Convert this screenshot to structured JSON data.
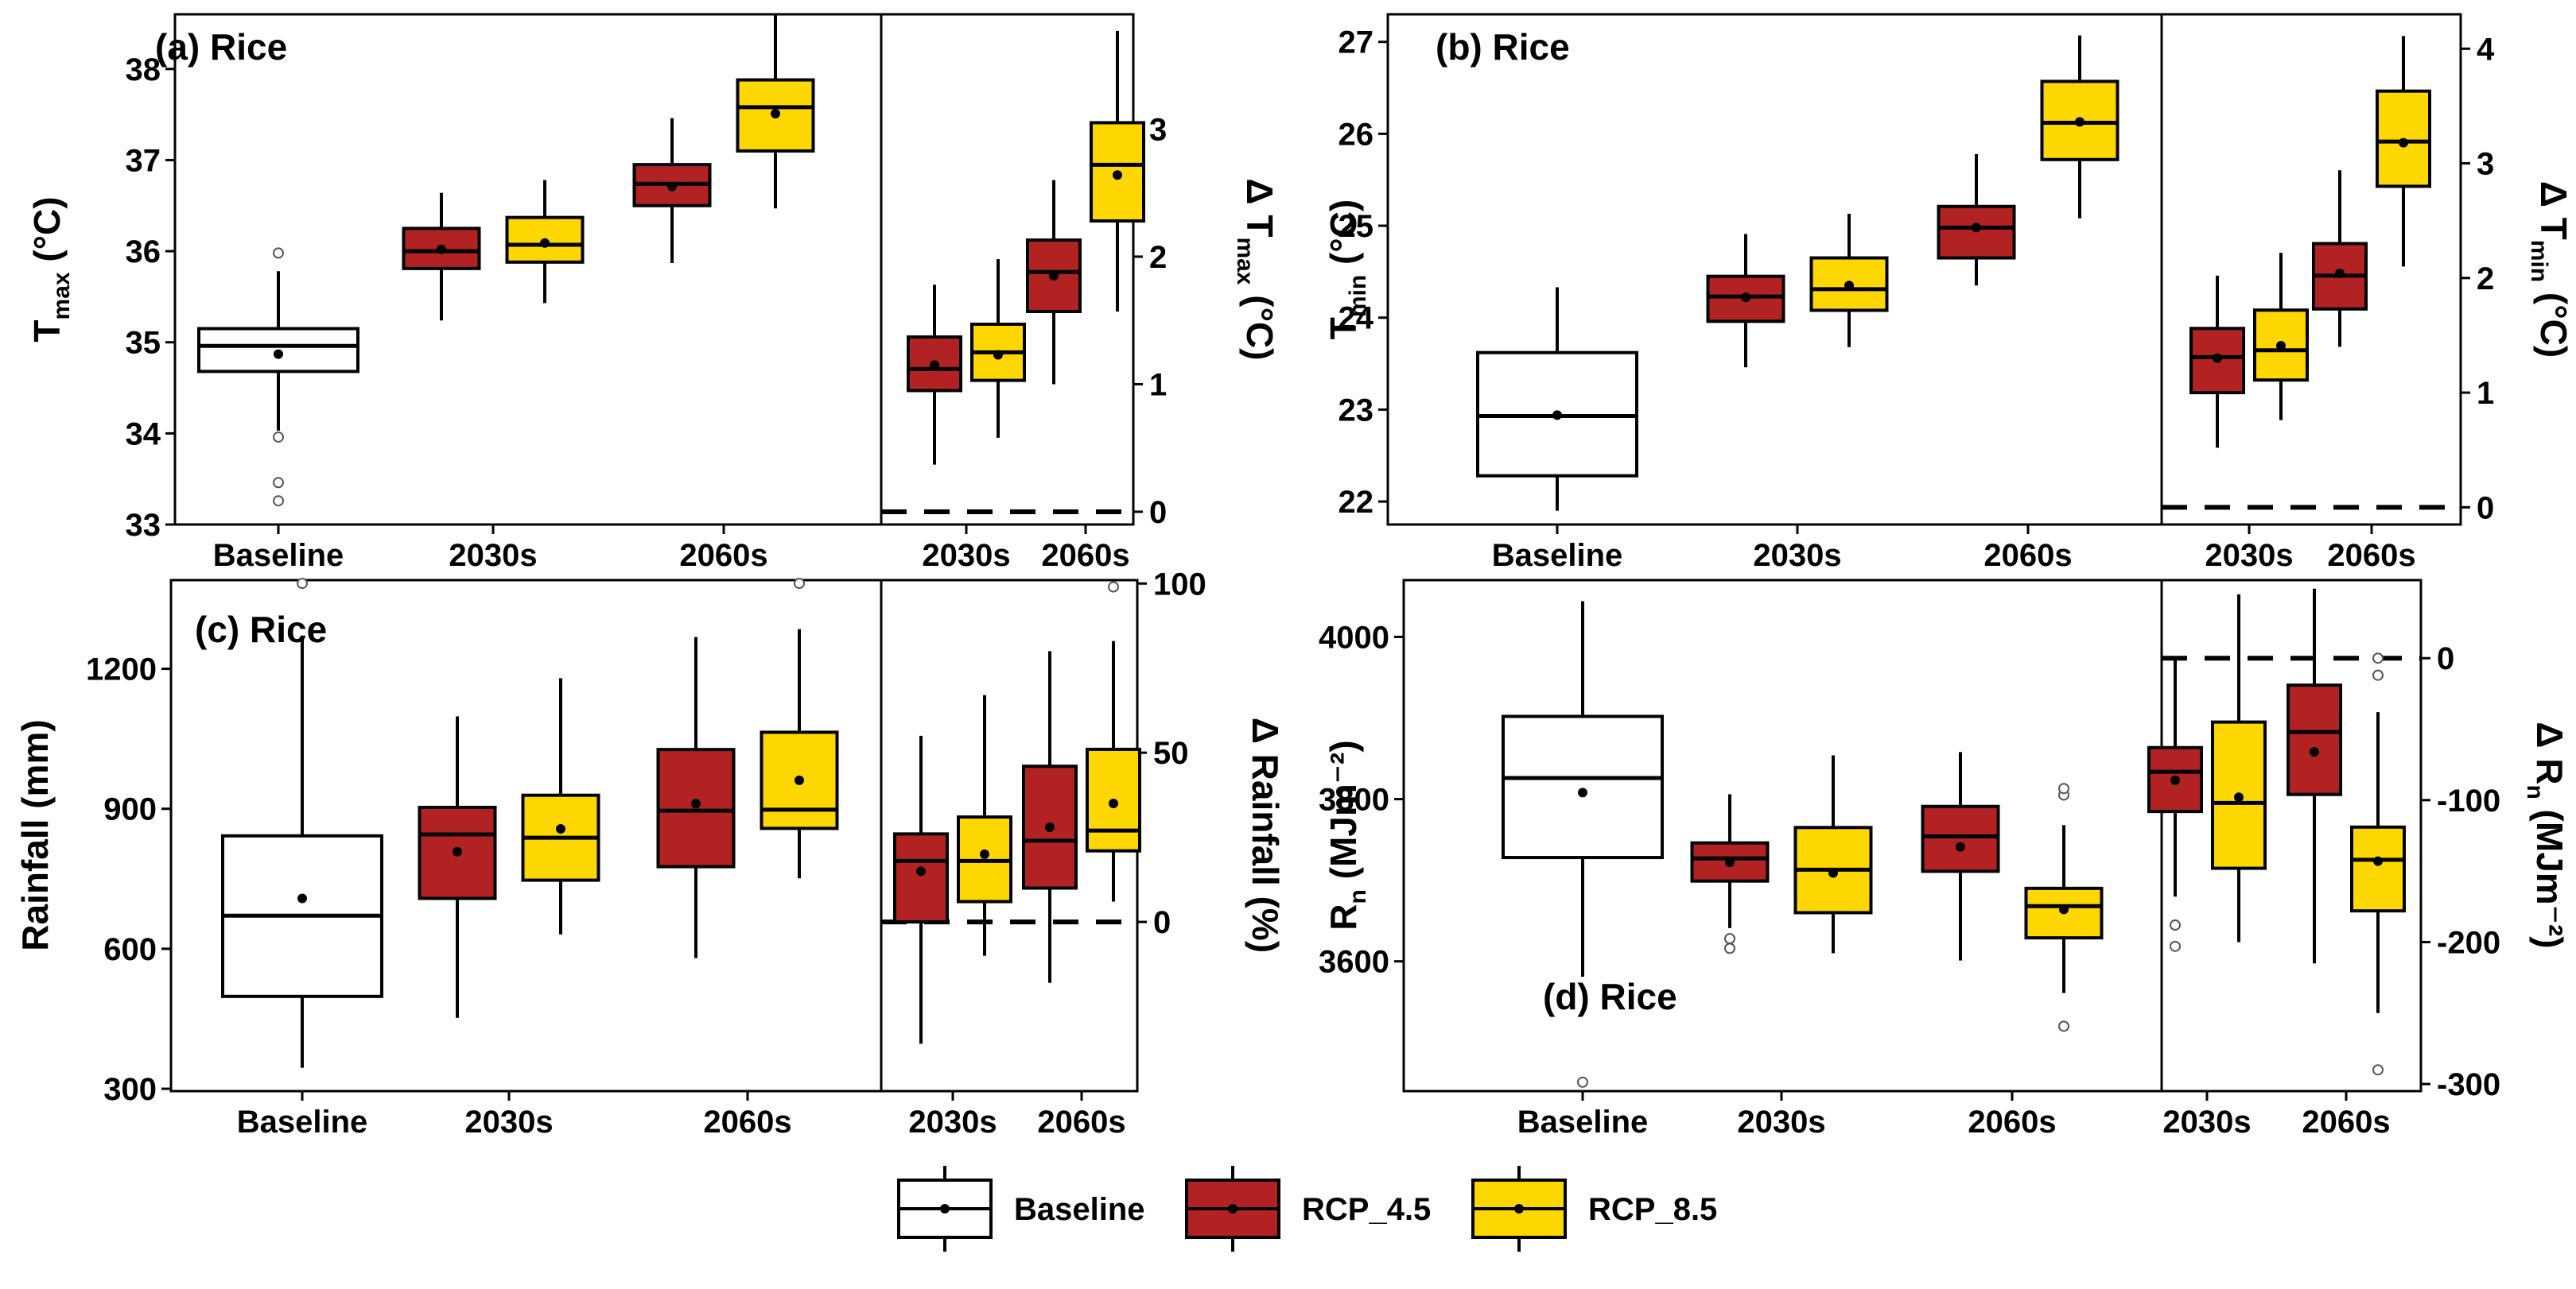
{
  "colors": {
    "baseline": "#ffffff",
    "rcp45": "#b22222",
    "rcp85": "#ffd700",
    "stroke": "#000000"
  },
  "legend": [
    {
      "key": "baseline",
      "label": "Baseline"
    },
    {
      "key": "rcp45",
      "label": "RCP_4.5"
    },
    {
      "key": "rcp85",
      "label": "RCP_8.5"
    }
  ],
  "chart_data": [
    {
      "type": "box",
      "panel": "a",
      "title": "(a) Rice",
      "ylabel": {
        "main": "T",
        "sub": "max",
        "unit": " (°C)"
      },
      "ylim": [
        33,
        38.6
      ],
      "yticks": [
        33,
        34,
        35,
        36,
        37,
        38
      ],
      "categories": [
        "Baseline",
        "2030s",
        "2060s"
      ],
      "boxes": [
        {
          "cat": 0,
          "series": "baseline",
          "whislo": 34.03,
          "q1": 34.68,
          "med": 34.96,
          "q3": 35.15,
          "whishi": 35.78,
          "mean": 34.87,
          "fliers": [
            35.98,
            33.96,
            33.46,
            33.26
          ]
        },
        {
          "cat": 1,
          "series": "rcp45",
          "whislo": 35.24,
          "q1": 35.81,
          "med": 36.0,
          "q3": 36.25,
          "whishi": 36.64,
          "mean": 36.02,
          "fliers": []
        },
        {
          "cat": 1,
          "series": "rcp85",
          "whislo": 35.43,
          "q1": 35.88,
          "med": 36.07,
          "q3": 36.37,
          "whishi": 36.78,
          "mean": 36.09,
          "fliers": []
        },
        {
          "cat": 2,
          "series": "rcp45",
          "whislo": 35.87,
          "q1": 36.5,
          "med": 36.74,
          "q3": 36.95,
          "whishi": 37.46,
          "mean": 36.71,
          "fliers": []
        },
        {
          "cat": 2,
          "series": "rcp85",
          "whislo": 36.47,
          "q1": 37.1,
          "med": 37.58,
          "q3": 37.88,
          "whishi": 38.6,
          "mean": 37.51,
          "fliers": []
        }
      ],
      "delta": {
        "ylabel": {
          "main": "Δ T",
          "sub": "max",
          "unit": " (°C)"
        },
        "ylim": [
          -0.1,
          3.9
        ],
        "yticks": [
          0,
          1,
          2,
          3
        ],
        "categories": [
          "2030s",
          "2060s"
        ],
        "hline": 0,
        "boxes": [
          {
            "cat": 0,
            "series": "rcp45",
            "whislo": 0.37,
            "q1": 0.95,
            "med": 1.12,
            "q3": 1.37,
            "whishi": 1.78,
            "mean": 1.15,
            "fliers": []
          },
          {
            "cat": 0,
            "series": "rcp85",
            "whislo": 0.58,
            "q1": 1.03,
            "med": 1.25,
            "q3": 1.47,
            "whishi": 1.98,
            "mean": 1.23,
            "fliers": []
          },
          {
            "cat": 1,
            "series": "rcp45",
            "whislo": 1.0,
            "q1": 1.57,
            "med": 1.88,
            "q3": 2.13,
            "whishi": 2.6,
            "mean": 1.85,
            "fliers": []
          },
          {
            "cat": 1,
            "series": "rcp85",
            "whislo": 1.57,
            "q1": 2.28,
            "med": 2.72,
            "q3": 3.05,
            "whishi": 3.77,
            "mean": 2.64,
            "fliers": []
          }
        ]
      }
    },
    {
      "type": "box",
      "panel": "b",
      "title": "(b) Rice",
      "ylabel": {
        "main": "T",
        "sub": "min",
        "unit": " (°C)"
      },
      "ylim": [
        21.75,
        27.3
      ],
      "yticks": [
        22,
        23,
        24,
        25,
        26,
        27
      ],
      "categories": [
        "Baseline",
        "2030s",
        "2060s"
      ],
      "boxes": [
        {
          "cat": 0,
          "series": "baseline",
          "whislo": 21.9,
          "q1": 22.28,
          "med": 22.93,
          "q3": 23.62,
          "whishi": 24.33,
          "mean": 22.94,
          "fliers": []
        },
        {
          "cat": 1,
          "series": "rcp45",
          "whislo": 23.46,
          "q1": 23.96,
          "med": 24.23,
          "q3": 24.45,
          "whishi": 24.91,
          "mean": 24.22,
          "fliers": []
        },
        {
          "cat": 1,
          "series": "rcp85",
          "whislo": 23.68,
          "q1": 24.08,
          "med": 24.31,
          "q3": 24.65,
          "whishi": 25.13,
          "mean": 24.35,
          "fliers": []
        },
        {
          "cat": 2,
          "series": "rcp45",
          "whislo": 24.35,
          "q1": 24.65,
          "med": 24.98,
          "q3": 25.21,
          "whishi": 25.78,
          "mean": 24.98,
          "fliers": []
        },
        {
          "cat": 2,
          "series": "rcp85",
          "whislo": 25.08,
          "q1": 25.72,
          "med": 26.12,
          "q3": 26.57,
          "whishi": 27.07,
          "mean": 26.13,
          "fliers": []
        }
      ],
      "delta": {
        "ylabel": {
          "main": "Δ T",
          "sub": "min",
          "unit": " (°C)"
        },
        "ylim": [
          -0.15,
          4.3
        ],
        "yticks": [
          0,
          1,
          2,
          3,
          4
        ],
        "categories": [
          "2030s",
          "2060s"
        ],
        "hline": 0,
        "boxes": [
          {
            "cat": 0,
            "series": "rcp45",
            "whislo": 0.52,
            "q1": 1.0,
            "med": 1.31,
            "q3": 1.56,
            "whishi": 2.02,
            "mean": 1.3,
            "fliers": []
          },
          {
            "cat": 0,
            "series": "rcp85",
            "whislo": 0.76,
            "q1": 1.11,
            "med": 1.37,
            "q3": 1.72,
            "whishi": 2.22,
            "mean": 1.41,
            "fliers": []
          },
          {
            "cat": 1,
            "series": "rcp45",
            "whislo": 1.4,
            "q1": 1.73,
            "med": 2.02,
            "q3": 2.3,
            "whishi": 2.94,
            "mean": 2.04,
            "fliers": []
          },
          {
            "cat": 1,
            "series": "rcp85",
            "whislo": 2.1,
            "q1": 2.8,
            "med": 3.19,
            "q3": 3.63,
            "whishi": 4.11,
            "mean": 3.18,
            "fliers": []
          }
        ]
      }
    },
    {
      "type": "box",
      "panel": "c",
      "title": "(c) Rice",
      "ylabel": {
        "main": "Rainfall (mm)",
        "sub": "",
        "unit": ""
      },
      "ylim": [
        295,
        1390
      ],
      "yticks": [
        300,
        600,
        900,
        1200
      ],
      "categories": [
        "Baseline",
        "2030s",
        "2060s"
      ],
      "boxes": [
        {
          "cat": 0,
          "series": "baseline",
          "whislo": 345,
          "q1": 498,
          "med": 671,
          "q3": 842,
          "whishi": 1268,
          "mean": 708,
          "fliers": [
            1383
          ]
        },
        {
          "cat": 1,
          "series": "rcp45",
          "whislo": 452,
          "q1": 708,
          "med": 845,
          "q3": 903,
          "whishi": 1098,
          "mean": 808,
          "fliers": []
        },
        {
          "cat": 1,
          "series": "rcp85",
          "whislo": 631,
          "q1": 747,
          "med": 838,
          "q3": 929,
          "whishi": 1180,
          "mean": 857,
          "fliers": []
        },
        {
          "cat": 2,
          "series": "rcp45",
          "whislo": 580,
          "q1": 776,
          "med": 896,
          "q3": 1027,
          "whishi": 1268,
          "mean": 911,
          "fliers": []
        },
        {
          "cat": 2,
          "series": "rcp85",
          "whislo": 751,
          "q1": 858,
          "med": 898,
          "q3": 1064,
          "whishi": 1285,
          "mean": 961,
          "fliers": [
            1383
          ]
        }
      ],
      "delta": {
        "ylabel": {
          "main": "Δ Rainfall (%)",
          "sub": "",
          "unit": ""
        },
        "ylim": [
          -50,
          101
        ],
        "yticks": [
          0,
          50,
          100
        ],
        "categories": [
          "2030s",
          "2060s"
        ],
        "hline": 0,
        "boxes": [
          {
            "cat": 0,
            "series": "rcp45",
            "whislo": -36,
            "q1": 0,
            "med": 18,
            "q3": 26,
            "whishi": 55,
            "mean": 15,
            "fliers": []
          },
          {
            "cat": 0,
            "series": "rcp85",
            "whislo": -10,
            "q1": 6,
            "med": 18,
            "q3": 31,
            "whishi": 67,
            "mean": 20,
            "fliers": []
          },
          {
            "cat": 1,
            "series": "rcp45",
            "whislo": -18,
            "q1": 10,
            "med": 24,
            "q3": 46,
            "whishi": 80,
            "mean": 28,
            "fliers": []
          },
          {
            "cat": 1,
            "series": "rcp85",
            "whislo": 6,
            "q1": 21,
            "med": 27,
            "q3": 51,
            "whishi": 83,
            "mean": 35,
            "fliers": [
              99
            ]
          }
        ]
      }
    },
    {
      "type": "box",
      "panel": "d",
      "title": "(d) Rice",
      "ylabel": {
        "main": "R",
        "sub": "n",
        "unit": " (MJm⁻²)"
      },
      "ylim": [
        3440,
        4070
      ],
      "yticks": [
        3600,
        3800,
        4000
      ],
      "categories": [
        "Baseline",
        "2030s",
        "2060s"
      ],
      "boxes": [
        {
          "cat": 0,
          "series": "baseline",
          "whislo": 3581,
          "q1": 3728,
          "med": 3826,
          "q3": 3902,
          "whishi": 4044,
          "mean": 3808,
          "fliers": [
            3451
          ]
        },
        {
          "cat": 1,
          "series": "rcp45",
          "whislo": 3641,
          "q1": 3699,
          "med": 3727,
          "q3": 3746,
          "whishi": 3806,
          "mean": 3722,
          "fliers": [
            3616,
            3628
          ]
        },
        {
          "cat": 1,
          "series": "rcp85",
          "whislo": 3610,
          "q1": 3660,
          "med": 3713,
          "q3": 3765,
          "whishi": 3854,
          "mean": 3709,
          "fliers": []
        },
        {
          "cat": 2,
          "series": "rcp45",
          "whislo": 3601,
          "q1": 3711,
          "med": 3754,
          "q3": 3791,
          "whishi": 3858,
          "mean": 3741,
          "fliers": []
        },
        {
          "cat": 2,
          "series": "rcp85",
          "whislo": 3561,
          "q1": 3629,
          "med": 3668,
          "q3": 3690,
          "whishi": 3768,
          "mean": 3664,
          "fliers": [
            3805,
            3813,
            3520
          ]
        }
      ],
      "delta": {
        "ylabel": {
          "main": "Δ R",
          "sub": "n",
          "unit": " (MJm⁻²)"
        },
        "ylim": [
          -305,
          55
        ],
        "yticks": [
          -300,
          -200,
          -100,
          0
        ],
        "categories": [
          "2030s",
          "2060s"
        ],
        "hline": 0,
        "boxes": [
          {
            "cat": 0,
            "series": "rcp45",
            "whislo": -168,
            "q1": -108,
            "med": -80,
            "q3": -63,
            "whishi": 1,
            "mean": -86,
            "fliers": [
              -188,
              -203
            ]
          },
          {
            "cat": 0,
            "series": "rcp85",
            "whislo": -200,
            "q1": -148,
            "med": -102,
            "q3": -45,
            "whishi": 45,
            "mean": -98,
            "fliers": []
          },
          {
            "cat": 1,
            "series": "rcp45",
            "whislo": -215,
            "q1": -96,
            "med": -52,
            "q3": -19,
            "whishi": 49,
            "mean": -66,
            "fliers": []
          },
          {
            "cat": 1,
            "series": "rcp85",
            "whislo": -250,
            "q1": -178,
            "med": -142,
            "q3": -119,
            "whishi": -38,
            "mean": -143,
            "fliers": [
              0,
              -12,
              -290
            ]
          }
        ]
      }
    }
  ]
}
